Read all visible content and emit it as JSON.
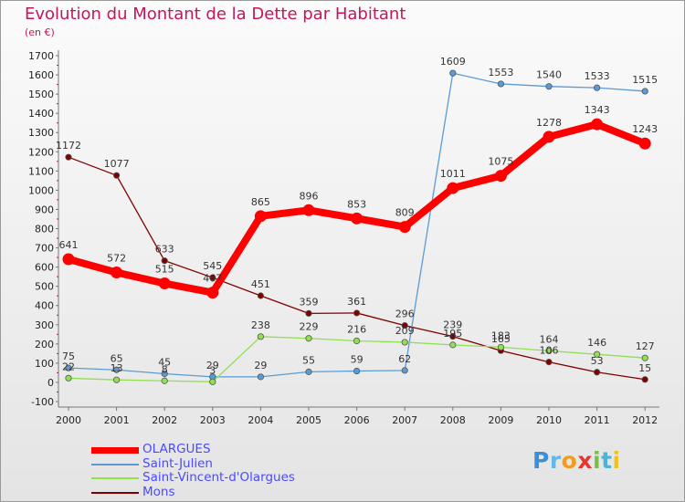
{
  "header": {
    "title": "Evolution du Montant de la Dette par Habitant",
    "subtitle": "(en €)"
  },
  "chart_data": {
    "type": "line",
    "title": "Evolution du Montant de la Dette par Habitant",
    "ylabel": "(en €)",
    "xlabel": "",
    "categories": [
      "2000",
      "2001",
      "2002",
      "2003",
      "2004",
      "2005",
      "2006",
      "2007",
      "2008",
      "2009",
      "2010",
      "2011",
      "2012"
    ],
    "ylim": [
      -100,
      1700
    ],
    "yticks": [
      -100,
      0,
      100,
      200,
      300,
      400,
      500,
      600,
      700,
      800,
      900,
      1000,
      1100,
      1200,
      1300,
      1400,
      1500,
      1600,
      1700
    ],
    "grid": false,
    "legend_position": "bottom-left",
    "series": [
      {
        "name": "OLARGUES",
        "color": "#ff0000",
        "values": [
          641,
          572,
          515,
          467,
          865,
          896,
          853,
          809,
          1011,
          1075,
          1278,
          1343,
          1243
        ]
      },
      {
        "name": "Saint-Julien",
        "color": "#5b9bd5",
        "values": [
          75,
          65,
          45,
          29,
          29,
          55,
          59,
          62,
          1609,
          1553,
          1540,
          1533,
          1515
        ]
      },
      {
        "name": "Saint-Vincent-d'Olargues",
        "color": "#90e050",
        "values": [
          22,
          13,
          8,
          3,
          238,
          229,
          216,
          209,
          195,
          183,
          164,
          146,
          127
        ]
      },
      {
        "name": "Mons",
        "color": "#800000",
        "values": [
          1172,
          1077,
          633,
          545,
          451,
          359,
          361,
          296,
          239,
          165,
          106,
          53,
          15
        ]
      }
    ]
  },
  "branding": {
    "logo_text": "Proxiti",
    "letters": [
      "P",
      "r",
      "o",
      "x",
      "i",
      "t",
      "i"
    ]
  }
}
